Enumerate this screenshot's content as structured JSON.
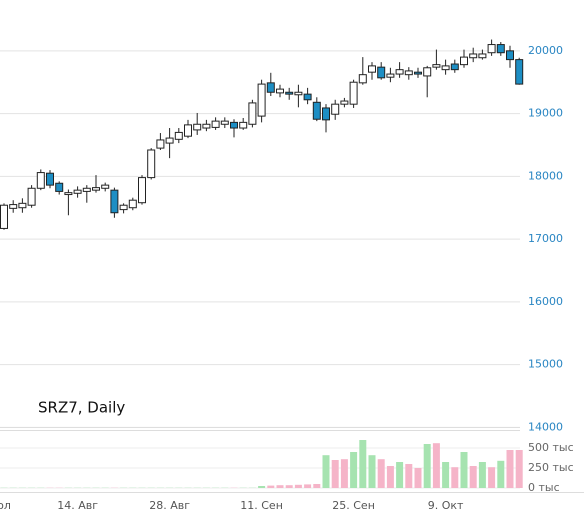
{
  "chart_data": {
    "type": "candlestick",
    "title": "SRZ7, Daily",
    "categories": [
      "ол",
      null,
      null,
      null,
      null,
      null,
      null,
      null,
      "14. Авг",
      null,
      null,
      null,
      null,
      null,
      null,
      null,
      null,
      null,
      "28. Авг",
      null,
      null,
      null,
      null,
      null,
      null,
      null,
      null,
      null,
      "11. Сен",
      null,
      null,
      null,
      null,
      null,
      null,
      null,
      null,
      null,
      "25. Сен",
      null,
      null,
      null,
      null,
      null,
      null,
      null,
      null,
      null,
      "9. Окт",
      null,
      null,
      null,
      null,
      null,
      null,
      null,
      null
    ],
    "open": [
      17170,
      17490,
      17500,
      17540,
      17810,
      18050,
      17890,
      17710,
      17730,
      17760,
      17780,
      17810,
      17780,
      17470,
      17500,
      17580,
      17980,
      18450,
      18530,
      18590,
      18640,
      18740,
      18770,
      18780,
      18830,
      18860,
      18770,
      18830,
      18960,
      19490,
      19330,
      19340,
      19300,
      19310,
      19180,
      19090,
      18990,
      19150,
      19150,
      19490,
      19660,
      19740,
      19580,
      19630,
      19620,
      19660,
      19600,
      19740,
      19700,
      19790,
      19780,
      19890,
      19890,
      19970,
      20100,
      20000,
      19860
    ],
    "high": [
      17570,
      17620,
      17650,
      17860,
      18110,
      18100,
      17920,
      17790,
      17840,
      17860,
      18020,
      17900,
      17820,
      17570,
      17660,
      18020,
      18450,
      18690,
      18770,
      18770,
      18900,
      19010,
      18900,
      18940,
      18940,
      18910,
      18930,
      19220,
      19540,
      19650,
      19460,
      19410,
      19460,
      19410,
      19260,
      19150,
      19220,
      19250,
      19540,
      19900,
      19820,
      19820,
      19730,
      19820,
      19740,
      19730,
      19760,
      20020,
      19860,
      19860,
      20020,
      20050,
      20020,
      20180,
      20140,
      20080,
      19890
    ],
    "low": [
      17150,
      17420,
      17420,
      17500,
      17780,
      17810,
      17710,
      17380,
      17660,
      17580,
      17740,
      17760,
      17340,
      17410,
      17460,
      17550,
      17950,
      18420,
      18290,
      18530,
      18610,
      18660,
      18720,
      18740,
      18770,
      18620,
      18740,
      18780,
      18860,
      19280,
      19260,
      19220,
      19100,
      19150,
      18880,
      18700,
      18900,
      19100,
      19090,
      19460,
      19540,
      19540,
      19500,
      19570,
      19540,
      19570,
      19260,
      19700,
      19620,
      19650,
      19730,
      19820,
      19860,
      19920,
      19920,
      19730,
      19460
    ],
    "close": [
      17540,
      17550,
      17570,
      17810,
      18060,
      17860,
      17760,
      17740,
      17780,
      17810,
      17820,
      17860,
      17420,
      17540,
      17620,
      17980,
      18420,
      18580,
      18610,
      18700,
      18820,
      18830,
      18830,
      18880,
      18880,
      18770,
      18860,
      19170,
      19470,
      19340,
      19390,
      19310,
      19340,
      19220,
      18910,
      18900,
      19150,
      19200,
      19500,
      19620,
      19760,
      19570,
      19630,
      19700,
      19680,
      19630,
      19730,
      19780,
      19760,
      19700,
      19900,
      19950,
      19950,
      20100,
      19970,
      19860,
      19470
    ],
    "up_color": "#ffffff",
    "down_color": "#1d8ec4",
    "ylim": [
      13990,
      20810
    ],
    "yticks": [
      14000,
      15000,
      16000,
      17000,
      18000,
      19000,
      20000
    ],
    "grid": true,
    "volume": [
      3,
      3,
      3,
      3,
      3,
      3,
      3,
      3,
      3,
      3,
      3,
      3,
      3,
      3,
      3,
      3,
      3,
      3,
      3,
      3,
      3,
      3,
      3,
      3,
      3,
      3,
      3,
      3,
      25,
      30,
      35,
      35,
      40,
      45,
      50,
      410,
      350,
      360,
      450,
      600,
      410,
      360,
      275,
      325,
      300,
      250,
      550,
      560,
      325,
      260,
      450,
      275,
      325,
      260,
      340,
      475,
      475
    ],
    "volume_colors": [
      "#a6e3b0",
      "#a6e3b0",
      "#a6e3b0",
      "#a6e3b0",
      "#a6e3b0",
      "#f5b4c8",
      "#f5b4c8",
      "#a6e3b0",
      "#a6e3b0",
      "#a6e3b0",
      "#a6e3b0",
      "#a6e3b0",
      "#f5b4c8",
      "#a6e3b0",
      "#a6e3b0",
      "#a6e3b0",
      "#a6e3b0",
      "#a6e3b0",
      "#a6e3b0",
      "#a6e3b0",
      "#a6e3b0",
      "#a6e3b0",
      "#a6e3b0",
      "#a6e3b0",
      "#a6e3b0",
      "#f5b4c8",
      "#a6e3b0",
      "#a6e3b0",
      "#a6e3b0",
      "#f5b4c8",
      "#f5b4c8",
      "#f5b4c8",
      "#f5b4c8",
      "#f5b4c8",
      "#f5b4c8",
      "#a6e3b0",
      "#f5b4c8",
      "#f5b4c8",
      "#a6e3b0",
      "#a6e3b0",
      "#a6e3b0",
      "#f5b4c8",
      "#f5b4c8",
      "#a6e3b0",
      "#f5b4c8",
      "#f5b4c8",
      "#a6e3b0",
      "#f5b4c8",
      "#a6e3b0",
      "#f5b4c8",
      "#a6e3b0",
      "#f5b4c8",
      "#a6e3b0",
      "#f5b4c8",
      "#a6e3b0",
      "#f5b4c8",
      "#f5b4c8"
    ],
    "vlim": [
      0,
      725
    ],
    "vticks": [
      {
        "value": 0,
        "label": "0 тыс"
      },
      {
        "value": 250,
        "label": "250 тыс"
      },
      {
        "value": 500,
        "label": "500 тыс"
      }
    ]
  }
}
